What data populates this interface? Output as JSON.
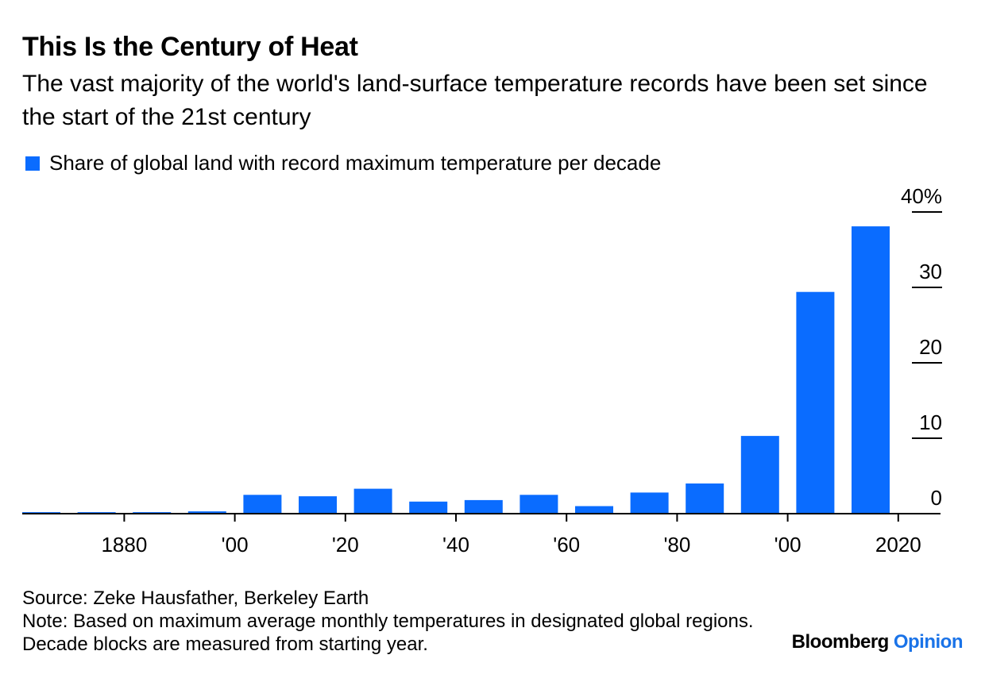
{
  "title": "This Is the Century of Heat",
  "subtitle": "The vast majority of the world's land-surface temperature records have been set since the start of the 21st century",
  "source": "Source: Zeke Hausfather, Berkeley Earth",
  "note": "Note: Based on maximum average monthly temperatures in designated global regions. Decade blocks are measured from starting year.",
  "brand": {
    "name": "Bloomberg",
    "section": "Opinion"
  },
  "colors": {
    "bar": "#0a6cff",
    "brand_accent": "#1a73e8",
    "axis": "#000000"
  },
  "chart_data": {
    "type": "bar",
    "title": "This Is the Century of Heat",
    "xlabel": "",
    "ylabel": "",
    "legend": "Share of global land with record maximum temperature per decade",
    "legend_position": "top-left",
    "y_axis_position": "right",
    "categories": [
      "1870s",
      "1880s",
      "1890s",
      "1900s",
      "1910s",
      "1920s",
      "1930s",
      "1940s",
      "1950s",
      "1960s",
      "1970s",
      "1980s",
      "1990s",
      "2000s",
      "2010s",
      "2020s"
    ],
    "x_tick_labels": [
      {
        "category": "1880s",
        "label": "1880"
      },
      {
        "category": "1900s",
        "label": "'00"
      },
      {
        "category": "1920s",
        "label": "'20"
      },
      {
        "category": "1940s",
        "label": "'40"
      },
      {
        "category": "1960s",
        "label": "'60"
      },
      {
        "category": "1980s",
        "label": "'80"
      },
      {
        "category": "2000s",
        "label": "'00"
      },
      {
        "category": "2020s",
        "label": "2020"
      }
    ],
    "values": [
      0.2,
      0.2,
      0.2,
      0.3,
      2.5,
      2.3,
      3.3,
      1.6,
      1.8,
      2.5,
      1.0,
      2.8,
      4.0,
      10.3,
      29.4,
      38.1
    ],
    "yticks": [
      0,
      10,
      20,
      30,
      40
    ],
    "ytick_labels": [
      "0",
      "10",
      "20",
      "30",
      "40%"
    ],
    "ylim": [
      0,
      40
    ],
    "grid": false
  }
}
